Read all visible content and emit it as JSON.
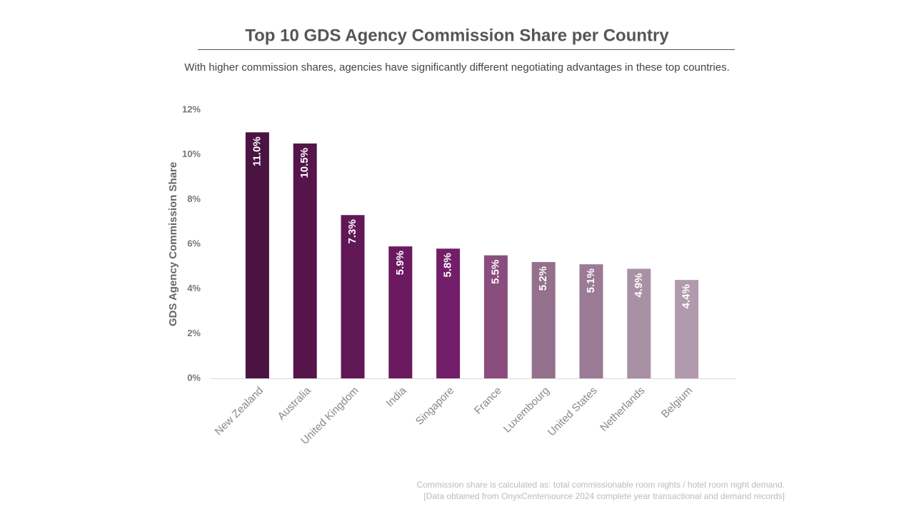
{
  "chart_data": {
    "type": "bar",
    "title": "Top 10 GDS Agency Commission Share per Country",
    "subtitle": "With higher commission shares, agencies have significantly different negotiating advantages in these top countries.",
    "y_label": "GDS Agency Commission Share",
    "categories": [
      "New Zealand",
      "Australia",
      "United Kingdom",
      "India",
      "Singapore",
      "France",
      "Luxembourg",
      "United States",
      "Netherlands",
      "Belgium"
    ],
    "values": [
      11.0,
      10.5,
      7.3,
      5.9,
      5.8,
      5.5,
      5.2,
      5.1,
      4.9,
      4.4
    ],
    "value_labels": [
      "11.0%",
      "10.5%",
      "7.3%",
      "5.9%",
      "5.8%",
      "5.5%",
      "5.2%",
      "5.1%",
      "4.9%",
      "4.4%"
    ],
    "colors": [
      "#4a1342",
      "#55154b",
      "#611857",
      "#6b1a60",
      "#731e68",
      "#8a4d7e",
      "#93708c",
      "#9b7a95",
      "#a890a5",
      "#b19aad"
    ],
    "ylim": [
      0,
      12
    ],
    "yticks": [
      {
        "value": 0,
        "label": "0%"
      },
      {
        "value": 2,
        "label": "2%"
      },
      {
        "value": 4,
        "label": "4%"
      },
      {
        "value": 6,
        "label": "6%"
      },
      {
        "value": 8,
        "label": "8%"
      },
      {
        "value": 10,
        "label": "10%"
      },
      {
        "value": 12,
        "label": "12%"
      }
    ],
    "footnotes": [
      "Commission share is calculated as: total commissionable room nights / hotel room night demand.",
      "[Data obtained from OnyxCentersource 2024 complete year transactional and demand records]"
    ]
  }
}
